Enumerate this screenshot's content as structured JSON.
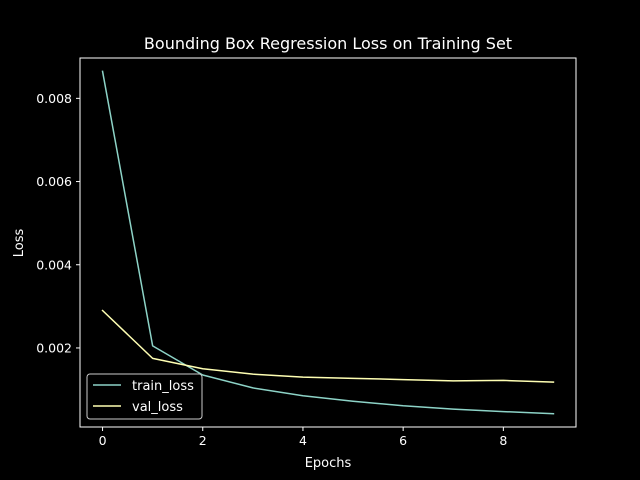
{
  "chart_data": {
    "type": "line",
    "title": "Bounding Box Regression Loss on Training Set",
    "xlabel": "Epochs",
    "ylabel": "Loss",
    "x": [
      0,
      1,
      2,
      3,
      4,
      5,
      6,
      7,
      8,
      9
    ],
    "series": [
      {
        "name": "train_loss",
        "color": "#8dd3c7",
        "values": [
          0.00865,
          0.00205,
          0.00135,
          0.00104,
          0.00085,
          0.00072,
          0.00061,
          0.00053,
          0.00047,
          0.00042
        ]
      },
      {
        "name": "val_loss",
        "color": "#ffffb3",
        "values": [
          0.0029,
          0.00175,
          0.0015,
          0.00137,
          0.0013,
          0.00127,
          0.00124,
          0.00121,
          0.00122,
          0.00118
        ]
      }
    ],
    "xlim": [
      -0.45,
      9.45
    ],
    "ylim": [
      0.0001,
      0.00897
    ],
    "xticks": [
      0,
      2,
      4,
      6,
      8
    ],
    "xtick_labels": [
      "0",
      "2",
      "4",
      "6",
      "8"
    ],
    "yticks": [
      0.002,
      0.004,
      0.006,
      0.008
    ],
    "ytick_labels": [
      "0.002",
      "0.004",
      "0.006",
      "0.008"
    ],
    "grid": false,
    "legend_position": "lower-left",
    "colors": {
      "background": "#000000",
      "axes": "#ffffff",
      "text": "#ffffff"
    }
  }
}
